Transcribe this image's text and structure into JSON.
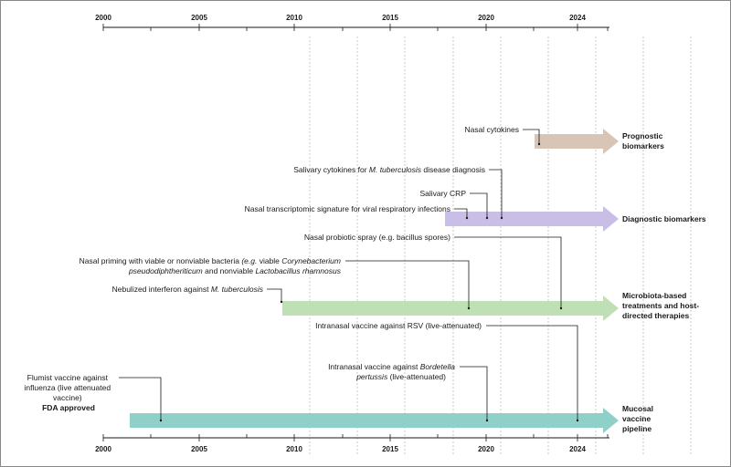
{
  "axis": {
    "years": [
      "2000",
      "2005",
      "2010",
      "2015",
      "2020",
      "2024"
    ]
  },
  "tracks": [
    {
      "category": [
        "Prognostic",
        "biomarkers"
      ],
      "color": "#d8c5b5"
    },
    {
      "category": [
        "Diagnostic biomarkers"
      ],
      "color": "#c9bfe6"
    },
    {
      "category": [
        "Microbiota-based",
        "treatments and host-",
        "directed therapies"
      ],
      "color": "#bfe0b5"
    },
    {
      "category": [
        "Mucosal",
        "vaccine",
        "pipeline"
      ],
      "color": "#8fd0c8"
    }
  ],
  "events": {
    "nasal_cytokines": "Nasal cytokines",
    "salivary_cytokines_pre": "Salivary cytokines for ",
    "salivary_cytokines_it": "M. tuberculosis",
    "salivary_cytokines_post": " disease diagnosis",
    "salivary_crp": "Salivary CRP",
    "nasal_transcriptomic": "Nasal transcriptomic signature for viral respiratory infections",
    "nasal_probiotic": "Nasal probiotic spray (e.g. bacillus spores)",
    "nasal_priming_l1_a": "Nasal priming with viable or nonviable bacteria ",
    "nasal_priming_l1_b": "(e.g.",
    "nasal_priming_l1_c": " viable ",
    "nasal_priming_l1_d": "Corynebacterium",
    "nasal_priming_l2_a": "pseudodiphtheriticum",
    "nasal_priming_l2_b": " and nonviable ",
    "nasal_priming_l2_c": "Lactobacillus rhamnosus",
    "nebulized_pre": "Nebulized interferon against ",
    "nebulized_it": "M. tuberculosis",
    "intranasal_rsv": "Intranasal vaccine against RSV (live-attenuated)",
    "bordetella_l1_a": "Intranasal vaccine against ",
    "bordetella_l1_b": "Bordetella",
    "bordetella_l2_a": "pertussis",
    "bordetella_l2_b": " (live-attenuated)",
    "flumist_l1": "Flumist vaccine against",
    "flumist_l2": "influenza (live attenuated",
    "flumist_l3": "vaccine)",
    "flumist_l4": "FDA approved"
  }
}
